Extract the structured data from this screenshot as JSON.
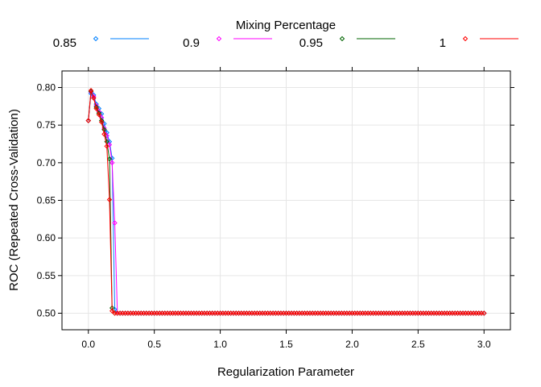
{
  "chart_data": {
    "type": "line",
    "title": "",
    "xlabel": "Regularization Parameter",
    "ylabel": "ROC (Repeated Cross-Validation)",
    "legend_title": "Mixing Percentage",
    "legend_position": "top",
    "grid": true,
    "xlim": [
      -0.2,
      3.2
    ],
    "ylim": [
      0.478,
      0.822
    ],
    "x_ticks": [
      0.0,
      0.5,
      1.0,
      1.5,
      2.0,
      2.5,
      3.0
    ],
    "x_tick_labels": [
      "0.0",
      "0.5",
      "1.0",
      "1.5",
      "2.0",
      "2.5",
      "3.0"
    ],
    "y_ticks": [
      0.5,
      0.55,
      0.6,
      0.65,
      0.7,
      0.75,
      0.8
    ],
    "y_tick_labels": [
      "0.50",
      "0.55",
      "0.60",
      "0.65",
      "0.70",
      "0.75",
      "0.80"
    ],
    "x_grid": {
      "start": 0,
      "end": 3,
      "step": 0.02
    },
    "series": [
      {
        "name": "0.85",
        "color": "#0080ff",
        "curve": {
          "x": [
            0,
            0.02,
            0.04,
            0.06,
            0.08,
            0.1,
            0.12,
            0.14,
            0.16,
            0.18,
            0.2,
            0.22
          ],
          "y": [
            0.756,
            0.792,
            0.79,
            0.778,
            0.772,
            0.765,
            0.752,
            0.74,
            0.728,
            0.706,
            0.505,
            0.5
          ]
        }
      },
      {
        "name": "0.9",
        "color": "#ff00ff",
        "curve": {
          "x": [
            0,
            0.02,
            0.04,
            0.06,
            0.08,
            0.1,
            0.12,
            0.14,
            0.16,
            0.18,
            0.2,
            0.22
          ],
          "y": [
            0.756,
            0.794,
            0.788,
            0.776,
            0.768,
            0.76,
            0.746,
            0.736,
            0.724,
            0.7,
            0.62,
            0.5
          ]
        }
      },
      {
        "name": "0.95",
        "color": "#006400",
        "curve": {
          "x": [
            0,
            0.02,
            0.04,
            0.06,
            0.08,
            0.1,
            0.12,
            0.14,
            0.16,
            0.18,
            0.2
          ],
          "y": [
            0.756,
            0.795,
            0.786,
            0.774,
            0.766,
            0.756,
            0.744,
            0.728,
            0.705,
            0.507,
            0.5
          ]
        }
      },
      {
        "name": "1",
        "color": "#ff0000",
        "curve": {
          "x": [
            0,
            0.02,
            0.04,
            0.06,
            0.08,
            0.1,
            0.12,
            0.14,
            0.16,
            0.18,
            0.2
          ],
          "y": [
            0.756,
            0.796,
            0.786,
            0.772,
            0.764,
            0.754,
            0.738,
            0.722,
            0.651,
            0.503,
            0.5
          ]
        }
      }
    ]
  }
}
